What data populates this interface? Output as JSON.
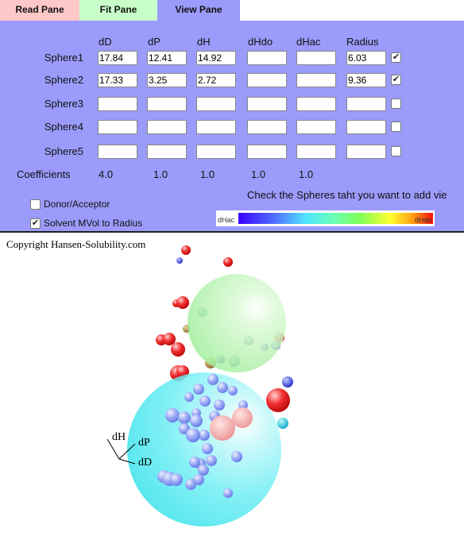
{
  "tabs": [
    {
      "label": "Read Pane",
      "color": "#ffc8c8",
      "active": false
    },
    {
      "label": "Fit Pane",
      "color": "#c8ffc8",
      "active": false
    },
    {
      "label": "View Pane",
      "color": "#9b9bfb",
      "active": true
    }
  ],
  "table": {
    "headers": [
      "dD",
      "dP",
      "dH",
      "dHdo",
      "dHac",
      "Radius"
    ],
    "rows": [
      {
        "label": "Sphere1",
        "values": [
          "17.84",
          "12.41",
          "14.92",
          "",
          "",
          "6.03"
        ],
        "checked": true
      },
      {
        "label": "Sphere2",
        "values": [
          "17.33",
          "3.25",
          "2.72",
          "",
          "",
          "9.36"
        ],
        "checked": true
      },
      {
        "label": "Sphere3",
        "values": [
          "",
          "",
          "",
          "",
          "",
          ""
        ],
        "checked": false
      },
      {
        "label": "Sphere4",
        "values": [
          "",
          "",
          "",
          "",
          "",
          ""
        ],
        "checked": false
      },
      {
        "label": "Sphere5",
        "values": [
          "",
          "",
          "",
          "",
          "",
          ""
        ],
        "checked": false
      }
    ],
    "coefficients_label": "Coefficients",
    "coefficients": [
      "4.0",
      "1.0",
      "1.0",
      "1.0",
      "1.0"
    ]
  },
  "options": {
    "donor_acceptor": {
      "label": "Donor/Acceptor",
      "checked": false
    },
    "solvent_mvol": {
      "label": "Solvent MVol to Radius",
      "checked": true
    }
  },
  "hint": "Check the Spheres taht you want to add vie",
  "colorbar": {
    "left_label": "dHac",
    "right_label": "dHdo"
  },
  "view": {
    "copyright": "Copyright Hansen-Solubility.com",
    "axis_labels": {
      "dH": "dH",
      "dP": "dP",
      "dD": "dD"
    }
  },
  "colors": {
    "panel": "#9b9bfb",
    "sphere1": "#a4f0a0",
    "sphere2": "#4fe8f0",
    "good_solvent": "#7f94f2",
    "bad_solvent": "#e82020"
  }
}
